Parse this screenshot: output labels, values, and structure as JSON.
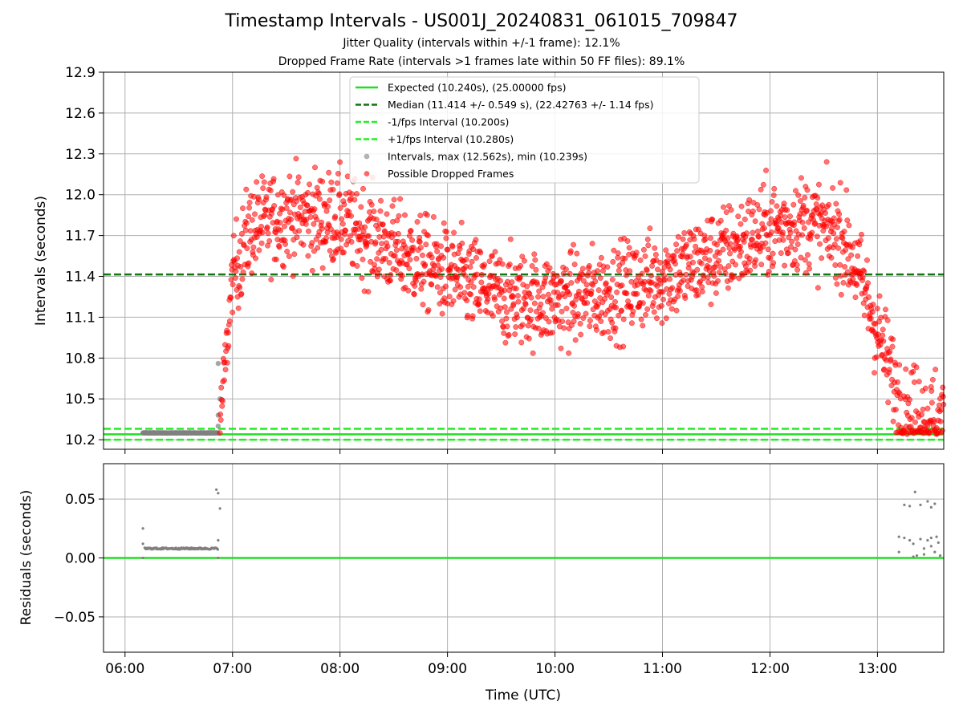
{
  "chart_data": [
    {
      "type": "scatter",
      "title": "Timestamp Intervals - US001J_20240831_061015_709847",
      "subtitle_jitter": "Jitter Quality (intervals within +/-1 frame): 12.1%",
      "subtitle_dropped": "Dropped Frame Rate (intervals >1 frames late within 50 FF files): 89.1%",
      "xlabel": "",
      "ylabel": "Intervals (seconds)",
      "xlim": [
        "05:48",
        "13:37"
      ],
      "ylim": [
        10.13,
        12.9
      ],
      "yticks": [
        "10.2",
        "10.5",
        "10.8",
        "11.1",
        "11.4",
        "11.7",
        "12.0",
        "12.3",
        "12.6",
        "12.9"
      ],
      "grid": true,
      "legend_position": "top-center",
      "reference_lines": [
        {
          "name": "Expected (10.240s), (25.00000 fps)",
          "y": 10.24,
          "style": "solid",
          "color": "#22dd22"
        },
        {
          "name": "Median (11.414 +/- 0.549 s), (22.42763 +/- 1.14 fps)",
          "y": 11.414,
          "style": "dashed",
          "color": "#117711"
        },
        {
          "name": "-1/fps Interval (10.200s)",
          "y": 10.2,
          "style": "dashed",
          "color": "#22ee22"
        },
        {
          "name": "+1/fps Interval (10.280s)",
          "y": 10.28,
          "style": "dashed",
          "color": "#22ee22"
        }
      ],
      "series": [
        {
          "name": "Intervals, max (12.562s), min (10.239s)",
          "color": "#808080",
          "segments": [
            {
              "x_range": [
                "06:10",
                "06:52"
              ],
              "y": 10.25
            }
          ],
          "points": [
            {
              "x": "06:52",
              "y": 10.3
            },
            {
              "x": "06:52",
              "y": 10.38
            },
            {
              "x": "06:53",
              "y": 10.5
            },
            {
              "x": "06:52",
              "y": 10.76
            }
          ]
        },
        {
          "name": "Possible Dropped Frames",
          "color": "#ff0000",
          "trend": [
            {
              "x": "06:53",
              "y": 10.32
            },
            {
              "x": "06:56",
              "y": 10.75
            },
            {
              "x": "07:00",
              "y": 11.4
            },
            {
              "x": "07:10",
              "y": 11.75
            },
            {
              "x": "07:30",
              "y": 11.85
            },
            {
              "x": "08:00",
              "y": 11.82
            },
            {
              "x": "08:30",
              "y": 11.6
            },
            {
              "x": "09:00",
              "y": 11.42
            },
            {
              "x": "09:30",
              "y": 11.25
            },
            {
              "x": "10:00",
              "y": 11.22
            },
            {
              "x": "10:30",
              "y": 11.28
            },
            {
              "x": "11:00",
              "y": 11.4
            },
            {
              "x": "11:30",
              "y": 11.55
            },
            {
              "x": "12:00",
              "y": 11.75
            },
            {
              "x": "12:20",
              "y": 11.8
            },
            {
              "x": "12:40",
              "y": 11.7
            },
            {
              "x": "12:50",
              "y": 11.4
            },
            {
              "x": "13:00",
              "y": 11.0
            },
            {
              "x": "13:10",
              "y": 10.6
            },
            {
              "x": "13:20",
              "y": 10.45
            },
            {
              "x": "13:37",
              "y": 10.4
            }
          ],
          "spread": 0.17
        }
      ]
    },
    {
      "type": "scatter",
      "xlabel": "Time (UTC)",
      "ylabel": "Residuals (seconds)",
      "xlim": [
        "05:48",
        "13:37"
      ],
      "xticks": [
        "06:00",
        "07:00",
        "08:00",
        "09:00",
        "10:00",
        "11:00",
        "12:00",
        "13:00"
      ],
      "ylim": [
        -0.08,
        0.08
      ],
      "yticks": [
        "−0.05",
        "0.00",
        "0.05"
      ],
      "grid": true,
      "reference_lines": [
        {
          "y": 0.0,
          "style": "solid",
          "color": "#22dd22"
        }
      ],
      "series": [
        {
          "color": "#808080",
          "segments": [
            {
              "x_range": [
                "06:11",
                "06:52"
              ],
              "y": 0.008
            }
          ],
          "points": [
            {
              "x": "06:10",
              "y": 0.025
            },
            {
              "x": "06:10",
              "y": 0.012
            },
            {
              "x": "06:10",
              "y": 0.0
            },
            {
              "x": "06:51",
              "y": 0.058
            },
            {
              "x": "06:52",
              "y": 0.055
            },
            {
              "x": "06:53",
              "y": 0.042
            },
            {
              "x": "06:52",
              "y": 0.015
            },
            {
              "x": "06:52",
              "y": 0.0
            },
            {
              "x": "13:12",
              "y": 0.018
            },
            {
              "x": "13:12",
              "y": 0.005
            },
            {
              "x": "13:15",
              "y": 0.045
            },
            {
              "x": "13:18",
              "y": 0.044
            },
            {
              "x": "13:21",
              "y": 0.056
            },
            {
              "x": "13:24",
              "y": 0.045
            },
            {
              "x": "13:28",
              "y": 0.048
            },
            {
              "x": "13:30",
              "y": 0.043
            },
            {
              "x": "13:32",
              "y": 0.046
            },
            {
              "x": "13:15",
              "y": 0.017
            },
            {
              "x": "13:18",
              "y": 0.015
            },
            {
              "x": "13:20",
              "y": 0.012
            },
            {
              "x": "13:22",
              "y": 0.002
            },
            {
              "x": "13:24",
              "y": 0.016
            },
            {
              "x": "13:26",
              "y": 0.008
            },
            {
              "x": "13:28",
              "y": 0.015
            },
            {
              "x": "13:30",
              "y": 0.017
            },
            {
              "x": "13:32",
              "y": 0.005
            },
            {
              "x": "13:34",
              "y": 0.013
            },
            {
              "x": "13:35",
              "y": 0.002
            },
            {
              "x": "13:20",
              "y": 0.001
            },
            {
              "x": "13:26",
              "y": 0.003
            },
            {
              "x": "13:30",
              "y": 0.01
            },
            {
              "x": "13:33",
              "y": 0.018
            }
          ]
        }
      ]
    }
  ]
}
